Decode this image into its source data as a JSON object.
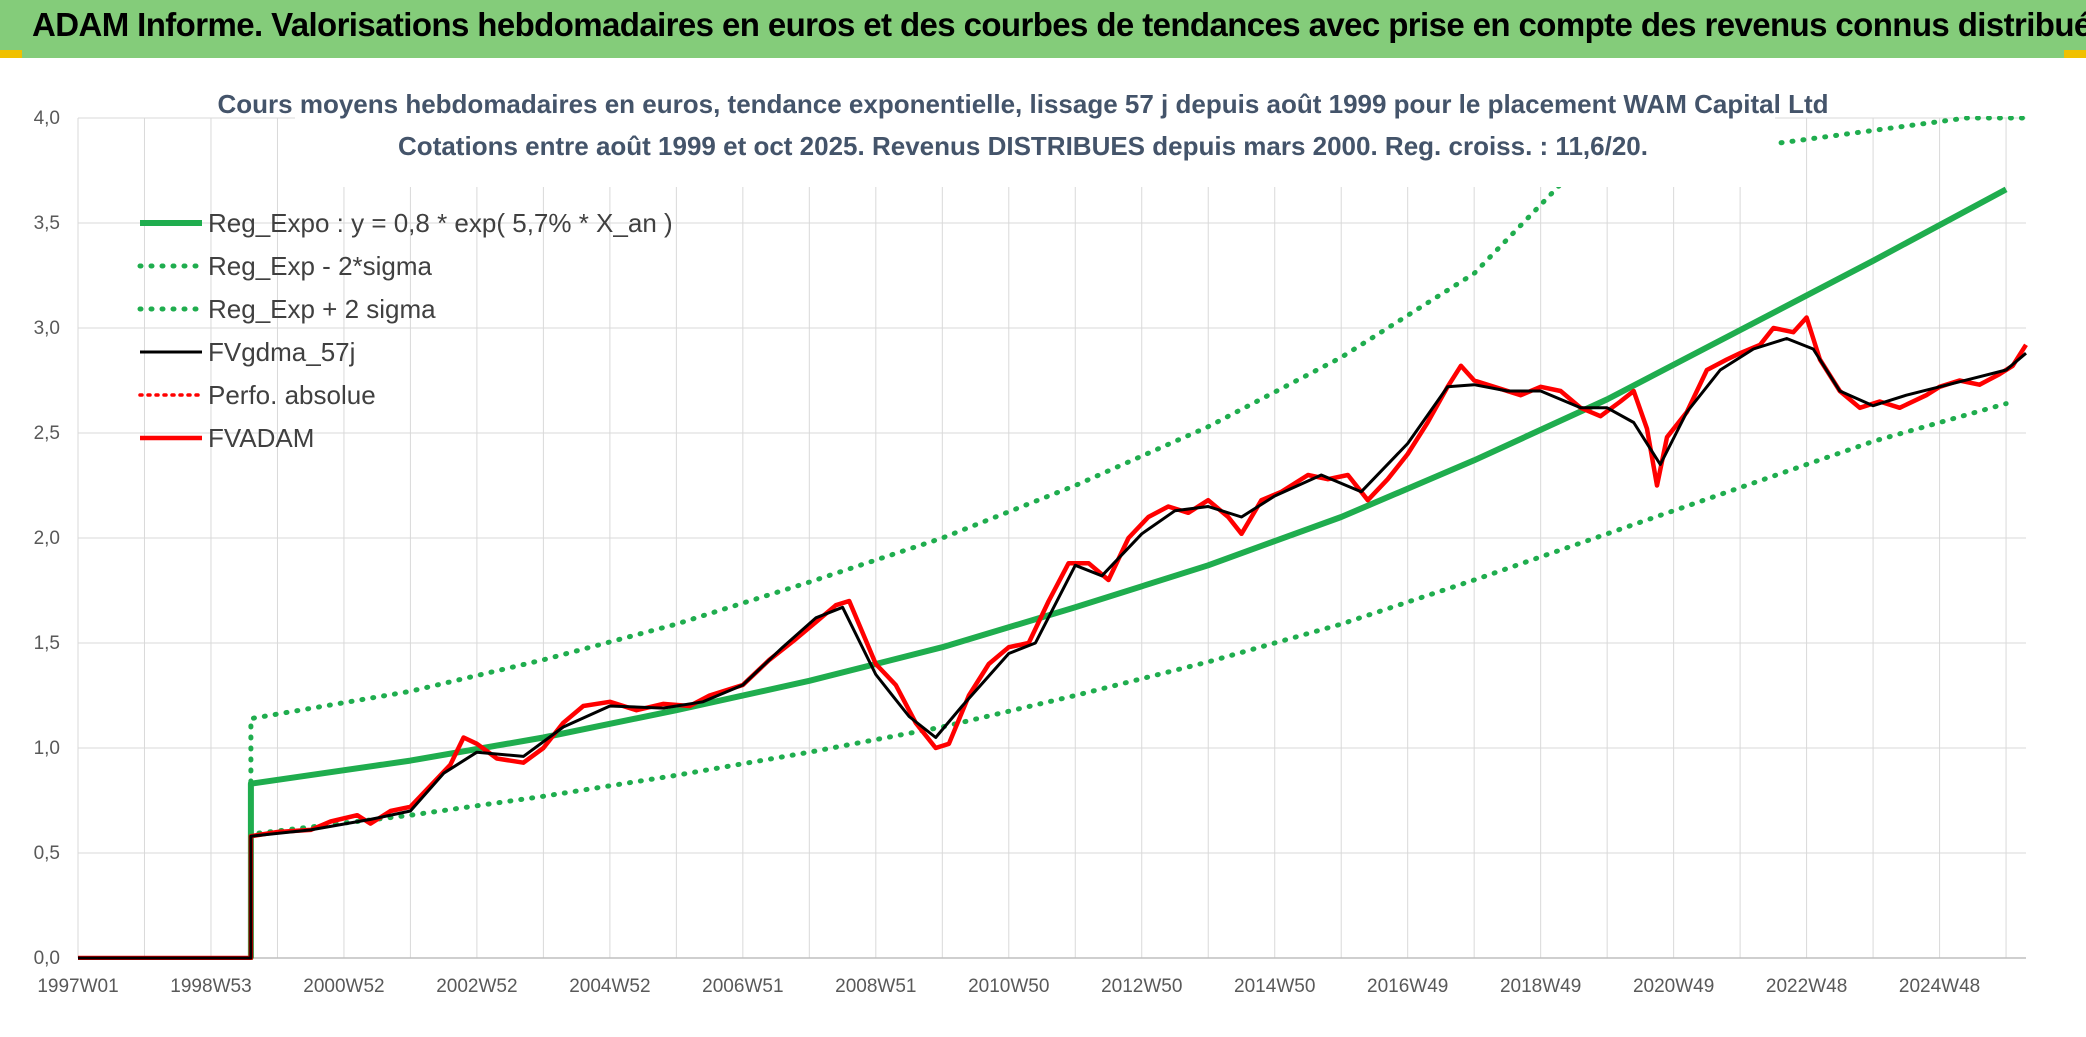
{
  "header": {
    "title": "ADAM Informe. Valorisations hebdomadaires en euros et des courbes de tendances avec prise en compte des revenus connus distribués"
  },
  "chart_data": {
    "type": "line",
    "title": "Cours moyens hebdomadaires en euros, tendance exponentielle, lissage 57 j depuis août 1999 pour le placement WAM Capital Ltd",
    "subtitle": "Cotations entre août 1999 et oct 2025. Revenus DISTRIBUES depuis mars 2000. Reg. croiss. : 11,6/20.",
    "xlabel": "",
    "ylabel": "",
    "ylim": [
      0,
      4
    ],
    "xlim": [
      1997.0,
      2026.3
    ],
    "yticks": [
      "0,0",
      "0,5",
      "1,0",
      "1,5",
      "2,0",
      "2,5",
      "3,0",
      "3,5",
      "4,0"
    ],
    "xticks": [
      {
        "label": "1997W01",
        "x": 1997.0
      },
      {
        "label": "1998W53",
        "x": 1999.0
      },
      {
        "label": "2000W52",
        "x": 2001.0
      },
      {
        "label": "2002W52",
        "x": 2003.0
      },
      {
        "label": "2004W52",
        "x": 2005.0
      },
      {
        "label": "2006W51",
        "x": 2007.0
      },
      {
        "label": "2008W51",
        "x": 2009.0
      },
      {
        "label": "2010W50",
        "x": 2011.0
      },
      {
        "label": "2012W50",
        "x": 2013.0
      },
      {
        "label": "2014W50",
        "x": 2015.0
      },
      {
        "label": "2016W49",
        "x": 2017.0
      },
      {
        "label": "2018W49",
        "x": 2019.0
      },
      {
        "label": "2020W49",
        "x": 2021.0
      },
      {
        "label": "2022W48",
        "x": 2023.0
      },
      {
        "label": "2024W48",
        "x": 2025.0
      }
    ],
    "grid": true,
    "legend_position": "top-left",
    "series": [
      {
        "name": "Reg_Expo : y = 0,8 * exp( 5,7% *  X_an )",
        "color": "#1fad4e",
        "style": "solid",
        "points": [
          [
            1999.6,
            0.0
          ],
          [
            1999.6,
            0.83
          ],
          [
            2002,
            0.94
          ],
          [
            2004,
            1.05
          ],
          [
            2006,
            1.18
          ],
          [
            2008,
            1.32
          ],
          [
            2010,
            1.48
          ],
          [
            2012,
            1.67
          ],
          [
            2014,
            1.87
          ],
          [
            2016,
            2.1
          ],
          [
            2018,
            2.37
          ],
          [
            2020,
            2.66
          ],
          [
            2022,
            2.99
          ],
          [
            2024,
            3.32
          ],
          [
            2026,
            3.66
          ]
        ]
      },
      {
        "name": "Reg_Exp - 2*sigma",
        "color": "#1fad4e",
        "style": "dotted",
        "points": [
          [
            1999.6,
            0.0
          ],
          [
            1999.6,
            0.59
          ],
          [
            2002,
            0.68
          ],
          [
            2004,
            0.77
          ],
          [
            2006,
            0.87
          ],
          [
            2008,
            0.98
          ],
          [
            2010,
            1.1
          ],
          [
            2012,
            1.25
          ],
          [
            2014,
            1.41
          ],
          [
            2016,
            1.59
          ],
          [
            2018,
            1.8
          ],
          [
            2020,
            2.02
          ],
          [
            2022,
            2.24
          ],
          [
            2024,
            2.46
          ],
          [
            2026,
            2.64
          ]
        ]
      },
      {
        "name": "Reg_Exp + 2 sigma",
        "color": "#1fad4e",
        "style": "dotted",
        "points": [
          [
            1999.6,
            0.0
          ],
          [
            1999.6,
            1.14
          ],
          [
            2002,
            1.27
          ],
          [
            2004,
            1.42
          ],
          [
            2006,
            1.59
          ],
          [
            2008,
            1.79
          ],
          [
            2010,
            2.0
          ],
          [
            2012,
            2.25
          ],
          [
            2014,
            2.53
          ],
          [
            2016,
            2.86
          ],
          [
            2018,
            3.26
          ],
          [
            2019.5,
            3.75
          ],
          [
            2025.4,
            4.0
          ],
          [
            2026.3,
            4.0
          ]
        ]
      },
      {
        "name": "FVgdma_57j",
        "color": "#000000",
        "style": "solid",
        "points": [
          [
            1997.0,
            0.0
          ],
          [
            1999.6,
            0.0
          ],
          [
            1999.6,
            0.58
          ],
          [
            2000.5,
            0.61
          ],
          [
            2001.4,
            0.66
          ],
          [
            2002.0,
            0.7
          ],
          [
            2002.5,
            0.88
          ],
          [
            2003.0,
            0.98
          ],
          [
            2003.7,
            0.96
          ],
          [
            2004.3,
            1.1
          ],
          [
            2005.0,
            1.2
          ],
          [
            2005.8,
            1.19
          ],
          [
            2006.4,
            1.22
          ],
          [
            2007.0,
            1.3
          ],
          [
            2007.6,
            1.48
          ],
          [
            2008.1,
            1.62
          ],
          [
            2008.5,
            1.67
          ],
          [
            2009.0,
            1.35
          ],
          [
            2009.5,
            1.15
          ],
          [
            2009.9,
            1.05
          ],
          [
            2010.3,
            1.2
          ],
          [
            2011.0,
            1.45
          ],
          [
            2011.4,
            1.5
          ],
          [
            2012.0,
            1.87
          ],
          [
            2012.4,
            1.82
          ],
          [
            2013.0,
            2.02
          ],
          [
            2013.5,
            2.13
          ],
          [
            2014.0,
            2.15
          ],
          [
            2014.5,
            2.1
          ],
          [
            2015.0,
            2.2
          ],
          [
            2015.7,
            2.3
          ],
          [
            2016.3,
            2.22
          ],
          [
            2017.0,
            2.45
          ],
          [
            2017.6,
            2.72
          ],
          [
            2018.0,
            2.73
          ],
          [
            2018.5,
            2.7
          ],
          [
            2019.0,
            2.7
          ],
          [
            2019.6,
            2.62
          ],
          [
            2020.0,
            2.62
          ],
          [
            2020.4,
            2.55
          ],
          [
            2020.8,
            2.35
          ],
          [
            2021.2,
            2.6
          ],
          [
            2021.7,
            2.8
          ],
          [
            2022.2,
            2.9
          ],
          [
            2022.7,
            2.95
          ],
          [
            2023.1,
            2.9
          ],
          [
            2023.5,
            2.7
          ],
          [
            2024.0,
            2.63
          ],
          [
            2024.5,
            2.68
          ],
          [
            2025.0,
            2.72
          ],
          [
            2025.5,
            2.76
          ],
          [
            2026.0,
            2.8
          ],
          [
            2026.3,
            2.88
          ]
        ]
      },
      {
        "name": "Perfo. absolue",
        "color": "#ff0000",
        "style": "dotted",
        "points": []
      },
      {
        "name": "FVADAM",
        "color": "#ff0000",
        "style": "solid",
        "points": [
          [
            1997.0,
            0.0
          ],
          [
            1999.6,
            0.0
          ],
          [
            1999.6,
            0.58
          ],
          [
            2000.0,
            0.6
          ],
          [
            2000.5,
            0.61
          ],
          [
            2000.8,
            0.65
          ],
          [
            2001.2,
            0.68
          ],
          [
            2001.4,
            0.64
          ],
          [
            2001.7,
            0.7
          ],
          [
            2002.0,
            0.72
          ],
          [
            2002.3,
            0.82
          ],
          [
            2002.6,
            0.92
          ],
          [
            2002.8,
            1.05
          ],
          [
            2003.0,
            1.02
          ],
          [
            2003.3,
            0.95
          ],
          [
            2003.7,
            0.93
          ],
          [
            2004.0,
            1.0
          ],
          [
            2004.3,
            1.12
          ],
          [
            2004.6,
            1.2
          ],
          [
            2005.0,
            1.22
          ],
          [
            2005.4,
            1.18
          ],
          [
            2005.8,
            1.21
          ],
          [
            2006.2,
            1.2
          ],
          [
            2006.5,
            1.25
          ],
          [
            2007.0,
            1.3
          ],
          [
            2007.4,
            1.42
          ],
          [
            2007.8,
            1.52
          ],
          [
            2008.1,
            1.6
          ],
          [
            2008.4,
            1.68
          ],
          [
            2008.6,
            1.7
          ],
          [
            2008.8,
            1.55
          ],
          [
            2009.0,
            1.4
          ],
          [
            2009.3,
            1.3
          ],
          [
            2009.6,
            1.12
          ],
          [
            2009.9,
            1.0
          ],
          [
            2010.1,
            1.02
          ],
          [
            2010.4,
            1.25
          ],
          [
            2010.7,
            1.4
          ],
          [
            2011.0,
            1.48
          ],
          [
            2011.3,
            1.5
          ],
          [
            2011.6,
            1.7
          ],
          [
            2011.9,
            1.88
          ],
          [
            2012.2,
            1.88
          ],
          [
            2012.5,
            1.8
          ],
          [
            2012.8,
            2.0
          ],
          [
            2013.1,
            2.1
          ],
          [
            2013.4,
            2.15
          ],
          [
            2013.7,
            2.12
          ],
          [
            2014.0,
            2.18
          ],
          [
            2014.3,
            2.1
          ],
          [
            2014.5,
            2.02
          ],
          [
            2014.8,
            2.18
          ],
          [
            2015.1,
            2.22
          ],
          [
            2015.5,
            2.3
          ],
          [
            2015.8,
            2.28
          ],
          [
            2016.1,
            2.3
          ],
          [
            2016.4,
            2.18
          ],
          [
            2016.7,
            2.28
          ],
          [
            2017.0,
            2.4
          ],
          [
            2017.3,
            2.55
          ],
          [
            2017.6,
            2.72
          ],
          [
            2017.8,
            2.82
          ],
          [
            2018.0,
            2.75
          ],
          [
            2018.3,
            2.72
          ],
          [
            2018.7,
            2.68
          ],
          [
            2019.0,
            2.72
          ],
          [
            2019.3,
            2.7
          ],
          [
            2019.6,
            2.62
          ],
          [
            2019.9,
            2.58
          ],
          [
            2020.2,
            2.65
          ],
          [
            2020.4,
            2.7
          ],
          [
            2020.6,
            2.52
          ],
          [
            2020.75,
            2.25
          ],
          [
            2020.9,
            2.48
          ],
          [
            2021.2,
            2.6
          ],
          [
            2021.5,
            2.8
          ],
          [
            2021.8,
            2.85
          ],
          [
            2022.0,
            2.88
          ],
          [
            2022.3,
            2.92
          ],
          [
            2022.5,
            3.0
          ],
          [
            2022.8,
            2.98
          ],
          [
            2023.0,
            3.05
          ],
          [
            2023.2,
            2.85
          ],
          [
            2023.5,
            2.7
          ],
          [
            2023.8,
            2.62
          ],
          [
            2024.1,
            2.65
          ],
          [
            2024.4,
            2.62
          ],
          [
            2024.8,
            2.68
          ],
          [
            2025.0,
            2.72
          ],
          [
            2025.3,
            2.75
          ],
          [
            2025.6,
            2.73
          ],
          [
            2025.9,
            2.78
          ],
          [
            2026.1,
            2.82
          ],
          [
            2026.3,
            2.92
          ]
        ]
      }
    ]
  }
}
